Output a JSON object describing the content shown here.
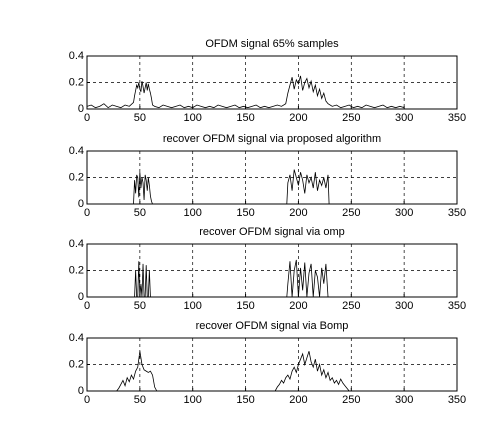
{
  "chart_data": [
    {
      "type": "line",
      "title": "OFDM signal 65% samples",
      "color": "#000000",
      "grid": true,
      "xlim": [
        0,
        350
      ],
      "xticks": [
        0,
        50,
        100,
        150,
        200,
        250,
        300,
        350
      ],
      "ylim": [
        0,
        0.4
      ],
      "yticks": [
        0,
        0.2,
        0.4
      ],
      "x": [
        0,
        4,
        8,
        12,
        16,
        20,
        24,
        28,
        32,
        36,
        40,
        44,
        45,
        46,
        47,
        48,
        49,
        50,
        51,
        52,
        53,
        54,
        55,
        56,
        57,
        58,
        59,
        60,
        61,
        62,
        64,
        68,
        72,
        76,
        80,
        84,
        88,
        92,
        96,
        100,
        104,
        108,
        112,
        116,
        120,
        124,
        128,
        132,
        136,
        140,
        144,
        148,
        152,
        156,
        160,
        164,
        168,
        172,
        176,
        180,
        184,
        188,
        190,
        192,
        194,
        196,
        198,
        200,
        202,
        204,
        206,
        208,
        210,
        212,
        214,
        216,
        218,
        220,
        222,
        224,
        226,
        228,
        232,
        236,
        240,
        244,
        248,
        252,
        256,
        260,
        264,
        268,
        272,
        276,
        280,
        284,
        288,
        292,
        296,
        300
      ],
      "values": [
        0.02,
        0.03,
        0.01,
        0.02,
        0.04,
        0.01,
        0.03,
        0.02,
        0.01,
        0.03,
        0.02,
        0.05,
        0.1,
        0.14,
        0.18,
        0.16,
        0.2,
        0.15,
        0.13,
        0.21,
        0.17,
        0.12,
        0.16,
        0.2,
        0.14,
        0.19,
        0.15,
        0.12,
        0.08,
        0.03,
        0.02,
        0.01,
        0.03,
        0.02,
        0.01,
        0.02,
        0.03,
        0.01,
        0.02,
        0.01,
        0.03,
        0.02,
        0.01,
        0.02,
        0.01,
        0.03,
        0.02,
        0.01,
        0.02,
        0.03,
        0.01,
        0.02,
        0.01,
        0.02,
        0.03,
        0.01,
        0.02,
        0.01,
        0.02,
        0.03,
        0.02,
        0.04,
        0.12,
        0.18,
        0.24,
        0.15,
        0.22,
        0.19,
        0.25,
        0.14,
        0.2,
        0.23,
        0.16,
        0.21,
        0.13,
        0.18,
        0.1,
        0.15,
        0.08,
        0.12,
        0.06,
        0.04,
        0.02,
        0.03,
        0.01,
        0.02,
        0.03,
        0.01,
        0.02,
        0.01,
        0.03,
        0.02,
        0.01,
        0.02,
        0.03,
        0.01,
        0.02,
        0.01,
        0.02,
        0.01
      ]
    },
    {
      "type": "line",
      "title": "recover OFDM signal via proposed algorithm",
      "color": "#000000",
      "grid": true,
      "xlim": [
        0,
        350
      ],
      "xticks": [
        0,
        50,
        100,
        150,
        200,
        250,
        300,
        350
      ],
      "ylim": [
        0,
        0.4
      ],
      "yticks": [
        0,
        0.2,
        0.4
      ],
      "x": [
        0,
        44,
        45,
        46,
        47,
        48,
        49,
        50,
        51,
        52,
        53,
        54,
        55,
        56,
        57,
        58,
        59,
        60,
        61,
        62,
        63,
        189,
        190,
        192,
        194,
        196,
        198,
        200,
        202,
        204,
        206,
        208,
        210,
        212,
        214,
        216,
        218,
        220,
        222,
        224,
        226,
        228,
        229,
        300
      ],
      "values": [
        0,
        0,
        0.18,
        0.08,
        0.22,
        0.2,
        0.05,
        0.24,
        0.12,
        0.2,
        0.16,
        0.03,
        0.22,
        0.18,
        0.1,
        0.2,
        0.14,
        0.06,
        0.02,
        0,
        0,
        0,
        0.16,
        0.22,
        0.1,
        0.26,
        0.2,
        0.14,
        0.24,
        0.18,
        0.08,
        0.22,
        0.16,
        0.2,
        0.12,
        0.24,
        0.1,
        0.18,
        0.14,
        0.2,
        0.12,
        0.22,
        0,
        0
      ]
    },
    {
      "type": "line",
      "title": "recover OFDM signal via omp",
      "color": "#000000",
      "grid": true,
      "xlim": [
        0,
        350
      ],
      "xticks": [
        0,
        50,
        100,
        150,
        200,
        250,
        300,
        350
      ],
      "ylim": [
        0,
        0.4
      ],
      "yticks": [
        0,
        0.2,
        0.4
      ],
      "x": [
        0,
        44,
        45,
        46,
        47,
        48,
        49,
        50,
        51,
        52,
        53,
        54,
        55,
        56,
        57,
        58,
        59,
        60,
        61,
        62,
        63,
        189,
        190,
        192,
        194,
        196,
        198,
        200,
        202,
        204,
        206,
        208,
        210,
        212,
        214,
        216,
        218,
        220,
        222,
        224,
        226,
        228,
        229,
        300
      ],
      "values": [
        0,
        0,
        0,
        0.2,
        0,
        0,
        0.27,
        0,
        0.1,
        0,
        0.25,
        0,
        0,
        0.24,
        0,
        0,
        0.2,
        0,
        0,
        0,
        0,
        0,
        0.1,
        0.27,
        0,
        0.2,
        0.28,
        0,
        0.22,
        0.05,
        0.26,
        0,
        0.18,
        0.25,
        0,
        0.2,
        0.15,
        0,
        0.22,
        0.1,
        0.25,
        0,
        0,
        0
      ]
    },
    {
      "type": "line",
      "title": "recover OFDM signal via Bomp",
      "color": "#000000",
      "grid": true,
      "xlim": [
        0,
        350
      ],
      "xticks": [
        0,
        50,
        100,
        150,
        200,
        250,
        300,
        350
      ],
      "ylim": [
        0,
        0.4
      ],
      "yticks": [
        0,
        0.2,
        0.4
      ],
      "x": [
        0,
        28,
        30,
        32,
        34,
        36,
        38,
        40,
        42,
        44,
        46,
        48,
        50,
        52,
        54,
        56,
        58,
        60,
        62,
        64,
        66,
        178,
        180,
        182,
        184,
        186,
        188,
        190,
        192,
        194,
        196,
        198,
        200,
        202,
        204,
        206,
        208,
        210,
        212,
        214,
        216,
        218,
        220,
        222,
        224,
        226,
        228,
        230,
        232,
        234,
        236,
        238,
        240,
        242,
        244,
        246,
        248,
        300
      ],
      "values": [
        0,
        0,
        0.02,
        0.05,
        0.08,
        0.04,
        0.1,
        0.07,
        0.12,
        0.09,
        0.15,
        0.18,
        0.3,
        0.2,
        0.16,
        0.15,
        0.14,
        0.15,
        0.12,
        0.03,
        0,
        0,
        0.03,
        0.05,
        0.08,
        0.06,
        0.1,
        0.12,
        0.09,
        0.15,
        0.18,
        0.14,
        0.2,
        0.24,
        0.28,
        0.2,
        0.25,
        0.3,
        0.22,
        0.18,
        0.24,
        0.15,
        0.2,
        0.12,
        0.16,
        0.1,
        0.14,
        0.08,
        0.1,
        0.06,
        0.08,
        0.05,
        0.09,
        0.06,
        0.04,
        0.02,
        0,
        0
      ]
    }
  ]
}
